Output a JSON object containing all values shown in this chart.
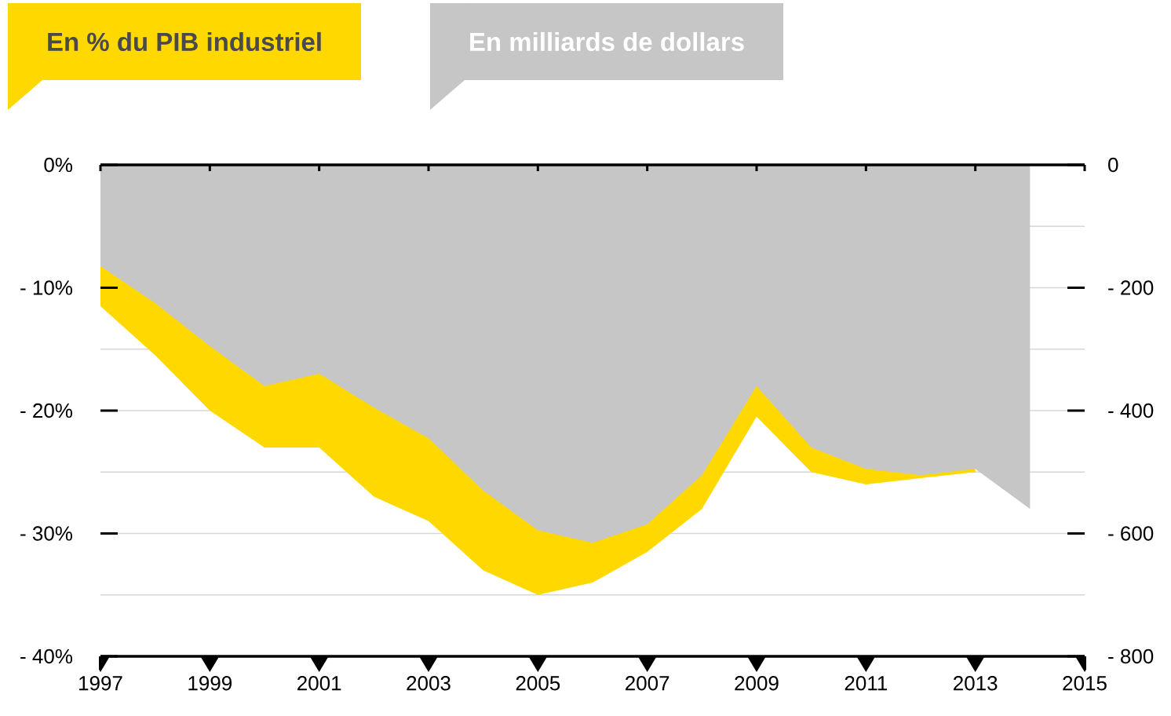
{
  "chart_data": {
    "type": "area",
    "xlim": [
      1997,
      2015
    ],
    "xticks": [
      1997,
      1999,
      2001,
      2003,
      2005,
      2007,
      2009,
      2011,
      2013,
      2015
    ],
    "ylim": [
      -40,
      0
    ],
    "yticks": [
      {
        "value": -40,
        "label": "- 40%"
      },
      {
        "value": -35,
        "label": null
      },
      {
        "value": -30,
        "label": "- 30%"
      },
      {
        "value": -25,
        "label": null
      },
      {
        "value": -20,
        "label": "- 20%"
      },
      {
        "value": -15,
        "label": null
      },
      {
        "value": -10,
        "label": "- 10%"
      },
      {
        "value": -5,
        "label": null
      },
      {
        "value": 0,
        "label": "0%"
      }
    ],
    "y2lim": [
      -800,
      0
    ],
    "y2ticks": [
      {
        "value": -800,
        "label": "- 800"
      },
      {
        "value": -600,
        "label": "- 600"
      },
      {
        "value": -400,
        "label": "- 400"
      },
      {
        "value": -200,
        "label": "- 200"
      },
      0
    ],
    "grid": "y",
    "legend": "top left",
    "series": [
      {
        "name": "En % du PIB industriel",
        "color": "#ffd800",
        "x": [
          1997,
          1998,
          1999,
          2000,
          2001,
          2002,
          2003,
          2004,
          2005,
          2006,
          2007,
          2008,
          2009,
          2010,
          2011,
          2012,
          2013
        ],
        "values": [
          -11.5,
          -15.5,
          -20,
          -23,
          -23,
          -27,
          -29,
          -33,
          -35,
          -34,
          -31.5,
          -28,
          -20.5,
          -25,
          -26,
          -25.5,
          -25
        ]
      },
      {
        "name": "En milliards de dollars",
        "color": "#c6c6c6",
        "axis": "y2",
        "x": [
          1997,
          1998,
          1999,
          2000,
          2001,
          2002,
          2003,
          2004,
          2005,
          2006,
          2007,
          2008,
          2009,
          2010,
          2011,
          2012,
          2013,
          2014
        ],
        "values": [
          -165,
          -225,
          -295,
          -360,
          -340,
          -395,
          -445,
          -530,
          -595,
          -615,
          -585,
          -505,
          -360,
          -460,
          -495,
          -505,
          -495,
          -560
        ]
      }
    ]
  }
}
